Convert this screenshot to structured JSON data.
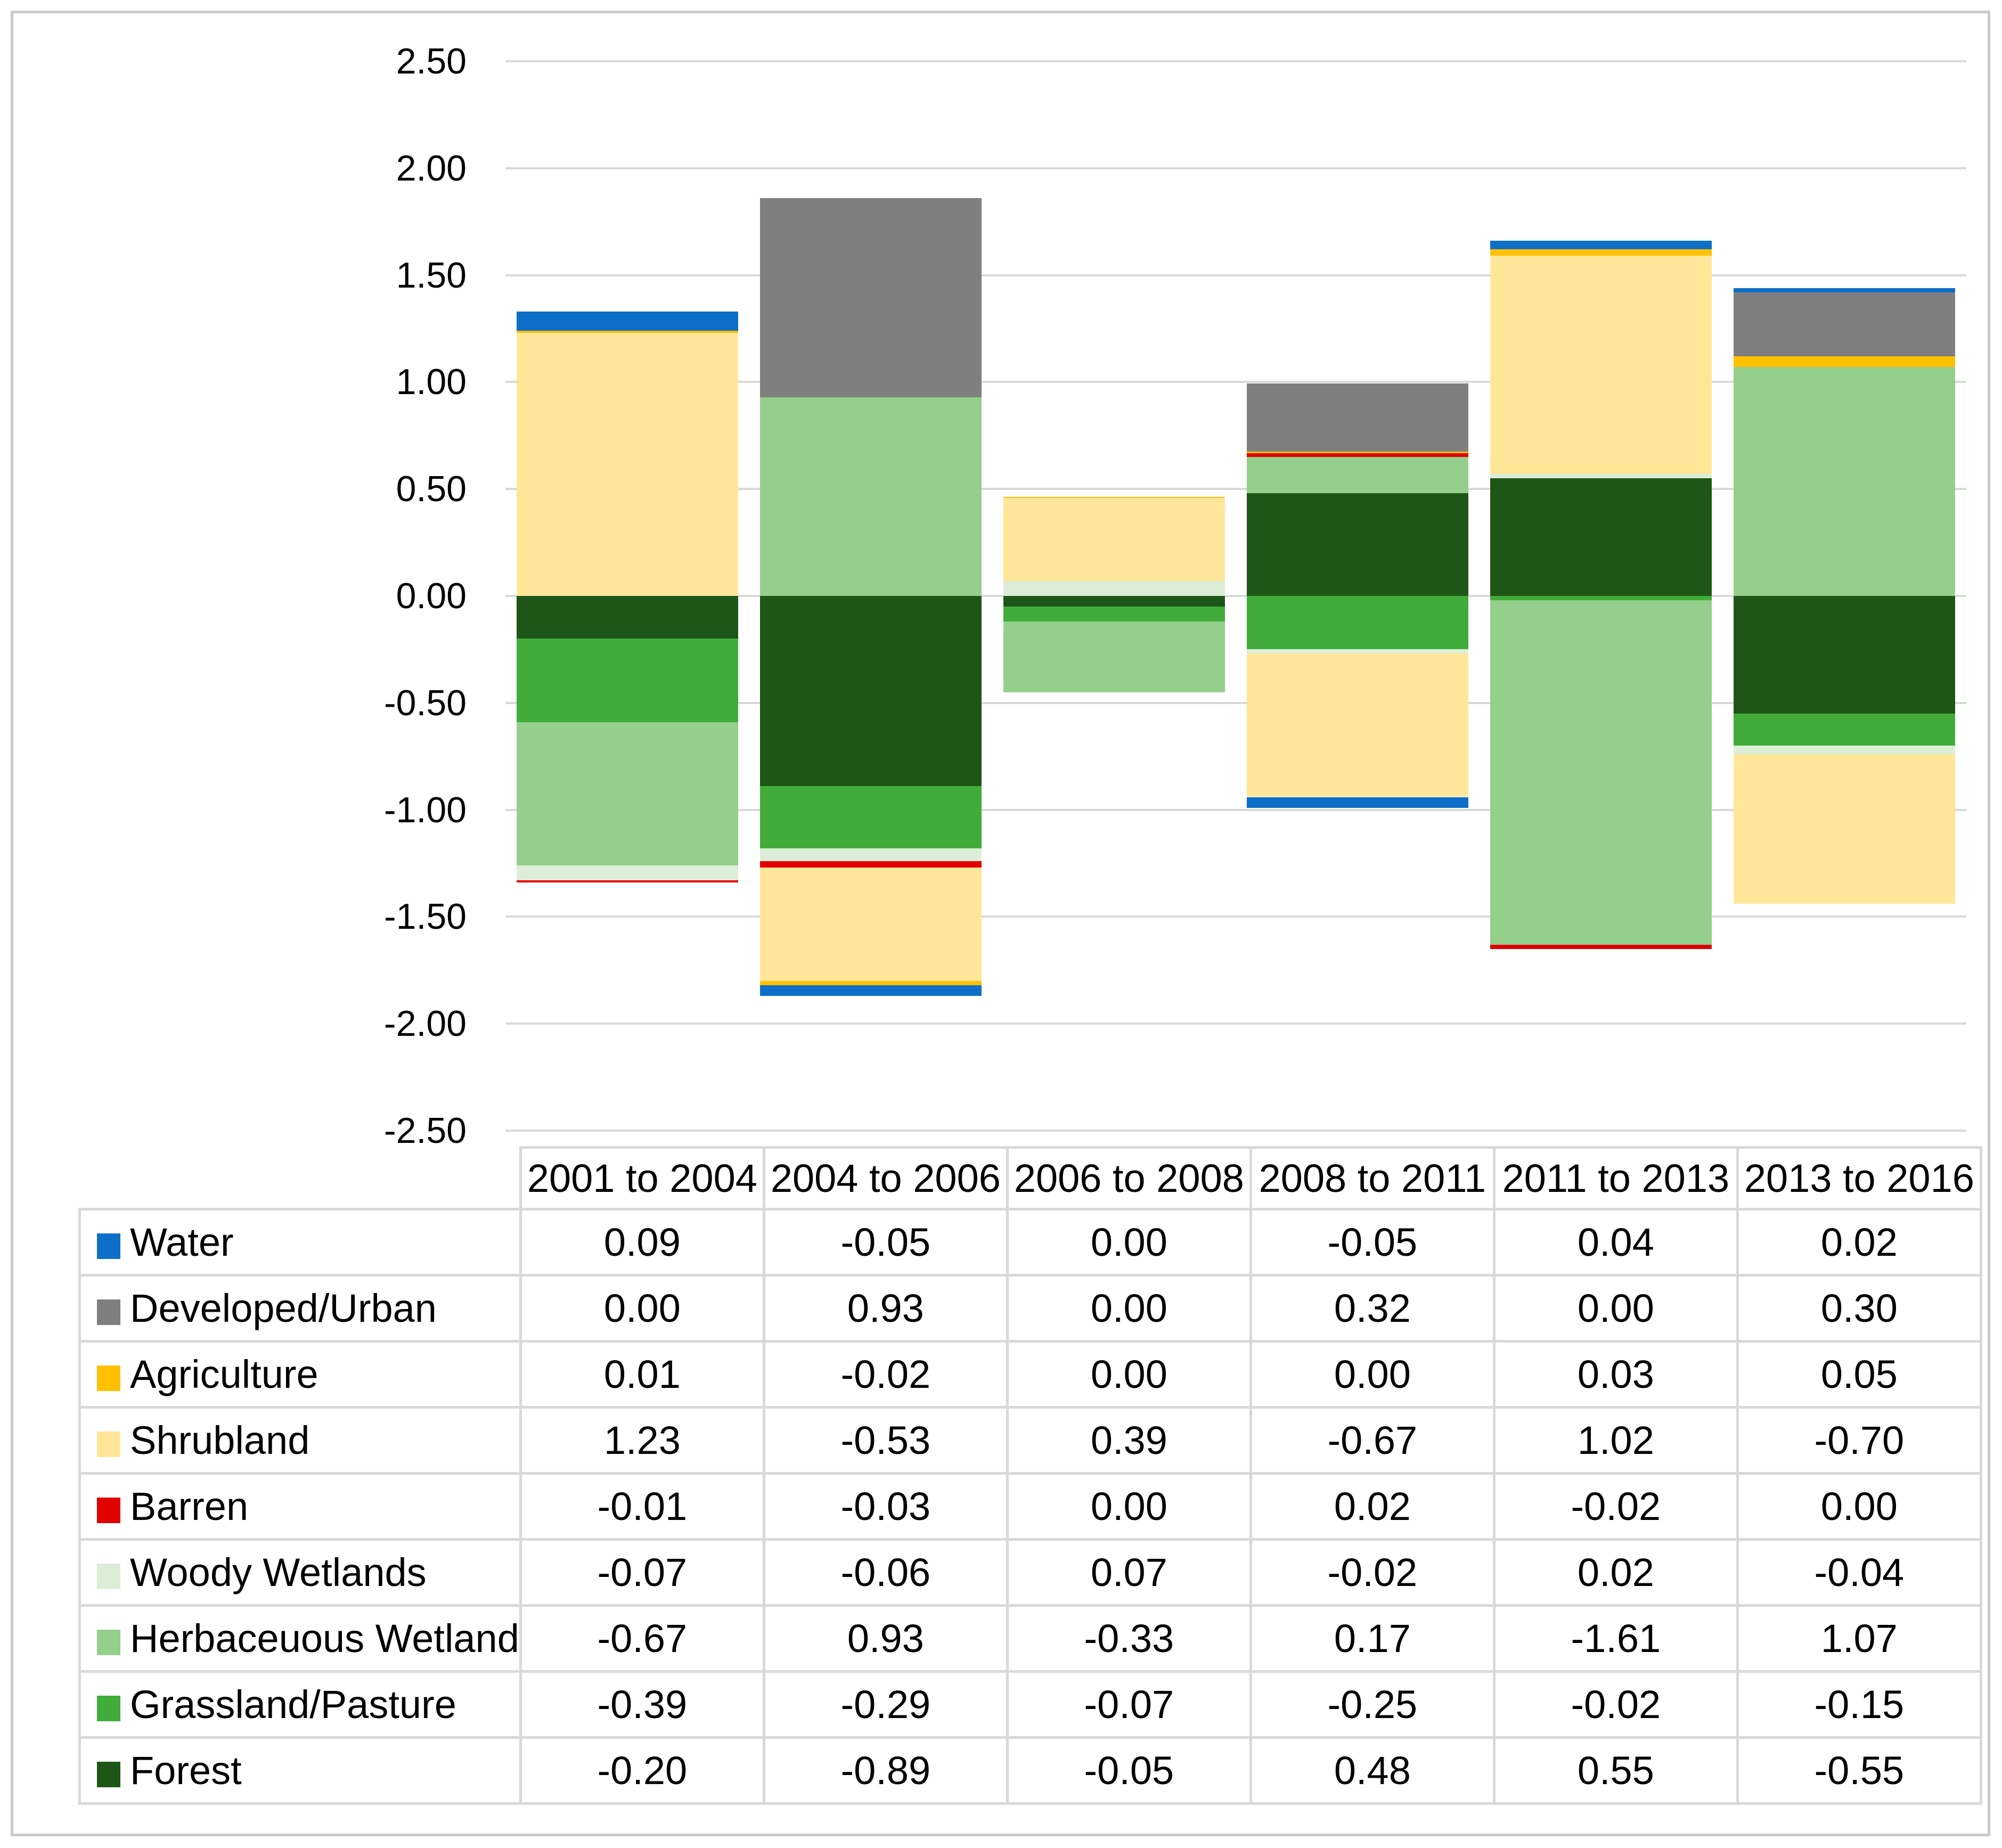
{
  "window": {
    "background": "#FFFFFF",
    "outer_border_color": "#C9C9C9",
    "gridline_color": "#D9D9D9",
    "table_border_color": "#D9D9D9"
  },
  "chart_data": {
    "type": "bar",
    "stacked": true,
    "title": "",
    "xlabel": "",
    "ylabel": "",
    "categories": [
      "2001 to 2004",
      "2004 to 2006",
      "2006 to 2008",
      "2008 to 2011",
      "2011 to 2013",
      "2013 to 2016"
    ],
    "series": [
      {
        "name": "Water",
        "color": "#0D6FC8",
        "values": [
          0.09,
          -0.05,
          0,
          -0.05,
          0.04,
          0.02
        ]
      },
      {
        "name": "Developed/Urban",
        "color": "#7F7F7F",
        "values": [
          0,
          0.93,
          0,
          0.32,
          0,
          0.3
        ]
      },
      {
        "name": "Agriculture",
        "color": "#FFC000",
        "values": [
          0.01,
          -0.02,
          0.004,
          0.004,
          0.03,
          0.05
        ]
      },
      {
        "name": "Shrubland",
        "color": "#FFE699",
        "values": [
          1.23,
          -0.53,
          0.39,
          -0.67,
          1.02,
          -0.7
        ]
      },
      {
        "name": "Barren",
        "color": "#E00000",
        "values": [
          -0.01,
          -0.03,
          0,
          0.02,
          -0.02,
          0
        ]
      },
      {
        "name": "Woody Wetlands",
        "color": "#DCEED8",
        "values": [
          -0.07,
          -0.06,
          0.07,
          -0.02,
          0.02,
          -0.04
        ]
      },
      {
        "name": "Herbaceuous Wetland",
        "color": "#94CF8B",
        "values": [
          -0.67,
          0.93,
          -0.33,
          0.17,
          -1.61,
          1.07
        ]
      },
      {
        "name": "Grassland/Pasture",
        "color": "#42AC3B",
        "values": [
          -0.39,
          -0.29,
          -0.07,
          -0.25,
          -0.02,
          -0.15
        ]
      },
      {
        "name": "Forest",
        "color": "#1E5617",
        "values": [
          -0.2,
          -0.89,
          -0.05,
          0.48,
          0.55,
          -0.55
        ]
      }
    ],
    "table_display_values": [
      [
        "0.09",
        "-0.05",
        "0.00",
        "-0.05",
        "0.04",
        "0.02"
      ],
      [
        "0.00",
        "0.93",
        "0.00",
        "0.32",
        "0.00",
        "0.30"
      ],
      [
        "0.01",
        "-0.02",
        "0.00",
        "0.00",
        "0.03",
        "0.05"
      ],
      [
        "1.23",
        "-0.53",
        "0.39",
        "-0.67",
        "1.02",
        "-0.70"
      ],
      [
        "-0.01",
        "-0.03",
        "0.00",
        "0.02",
        "-0.02",
        "0.00"
      ],
      [
        "-0.07",
        "-0.06",
        "0.07",
        "-0.02",
        "0.02",
        "-0.04"
      ],
      [
        "-0.67",
        "0.93",
        "-0.33",
        "0.17",
        "-1.61",
        "1.07"
      ],
      [
        "-0.39",
        "-0.29",
        "-0.07",
        "-0.25",
        "-0.02",
        "-0.15"
      ],
      [
        "-0.20",
        "-0.89",
        "-0.05",
        "0.48",
        "0.55",
        "-0.55"
      ]
    ],
    "y_axis": {
      "min": -2.5,
      "max": 2.5,
      "step": 0.5,
      "tick_labels": [
        "2.50",
        "2.00",
        "1.50",
        "1.00",
        "0.50",
        "0.00",
        "-0.50",
        "-1.00",
        "-1.50",
        "-2.00",
        "-2.50"
      ]
    },
    "grid": true,
    "legend_position": "table rows on left of data table below chart",
    "stack_order": "reversed: Forest adjacent to zero line, Water outermost"
  }
}
